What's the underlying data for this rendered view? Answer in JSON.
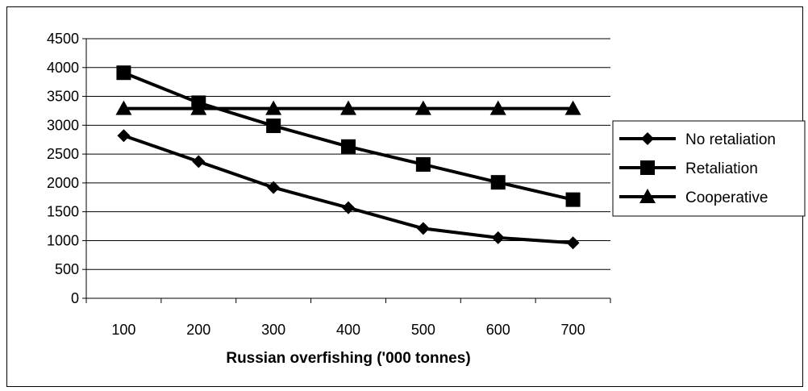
{
  "chart_data": {
    "type": "line",
    "title": "",
    "xlabel": "Russian overfishing ('000 tonnes)",
    "ylabel": "",
    "x": [
      100,
      200,
      300,
      400,
      500,
      600,
      700
    ],
    "ylim": [
      0,
      4500
    ],
    "yticks": [
      0,
      500,
      1000,
      1500,
      2000,
      2500,
      3000,
      3500,
      4000,
      4500
    ],
    "grid": "horizontal",
    "legend_position": "right",
    "series": [
      {
        "name": "No retaliation",
        "marker": "diamond",
        "values": [
          2820,
          2370,
          1920,
          1570,
          1210,
          1050,
          960
        ]
      },
      {
        "name": "Retaliation",
        "marker": "square",
        "values": [
          3910,
          3390,
          2990,
          2630,
          2320,
          2010,
          1710
        ]
      },
      {
        "name": "Cooperative",
        "marker": "triangle",
        "values": [
          3290,
          3290,
          3290,
          3290,
          3290,
          3290,
          3290
        ]
      }
    ],
    "line_color": "#000000"
  }
}
